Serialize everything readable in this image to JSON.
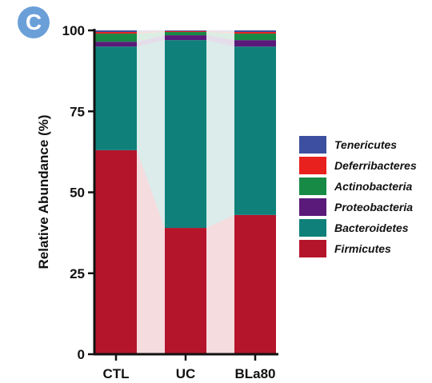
{
  "panel_label": "C",
  "chart_data": {
    "type": "bar",
    "stacked": true,
    "categories": [
      "CTL",
      "UC",
      "BLa80"
    ],
    "ylabel": "Relative Abundance (%)",
    "ylim": [
      0,
      100
    ],
    "yticks": [
      0,
      25,
      50,
      75,
      100
    ],
    "legend_position": "right",
    "series": [
      {
        "name": "Firmicutes",
        "color": "#b5152b",
        "values": [
          63,
          39,
          43
        ]
      },
      {
        "name": "Bacteroidetes",
        "color": "#0f807a",
        "values": [
          32,
          58,
          52
        ]
      },
      {
        "name": "Proteobacteria",
        "color": "#5a1a7a",
        "values": [
          1.5,
          1.5,
          2
        ]
      },
      {
        "name": "Actinobacteria",
        "color": "#178a46",
        "values": [
          2.5,
          1,
          2
        ]
      },
      {
        "name": "Deferribacteres",
        "color": "#e8201e",
        "values": [
          0.5,
          0.3,
          0.5
        ]
      },
      {
        "name": "Tenericutes",
        "color": "#3d4fa0",
        "values": [
          0.5,
          0.2,
          0.5
        ]
      }
    ],
    "legend_order": [
      "Tenericutes",
      "Deferribacteres",
      "Actinobacteria",
      "Proteobacteria",
      "Bacteroidetes",
      "Firmicutes"
    ]
  }
}
